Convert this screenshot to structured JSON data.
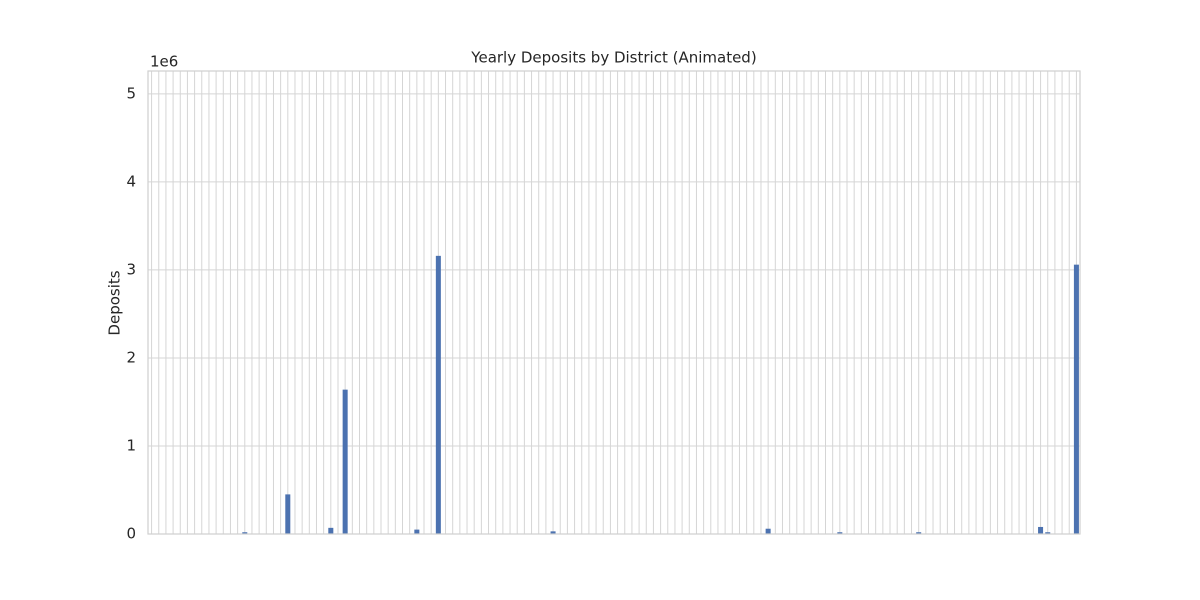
{
  "chart_data": {
    "type": "bar",
    "title": "Yearly Deposits by District (Animated)",
    "ylabel": "Deposits",
    "y_offset_label": "1e6",
    "categories": [
      null,
      null,
      null,
      null,
      null,
      null,
      null,
      null,
      null,
      null,
      null,
      null,
      null,
      null,
      null,
      null,
      null,
      null,
      null,
      null,
      null,
      null,
      null,
      null,
      null,
      null,
      null,
      null,
      null,
      null,
      null,
      null,
      null,
      null,
      null,
      null,
      null,
      null,
      null,
      null,
      null,
      null,
      null,
      null,
      null,
      null,
      null,
      null,
      null,
      null,
      null,
      null,
      null,
      null,
      null,
      null,
      null,
      null,
      null,
      null,
      null,
      null,
      null,
      null,
      null,
      null,
      null,
      null,
      null,
      null,
      null,
      null,
      null,
      null,
      null,
      null,
      null,
      null,
      null,
      null,
      null,
      null,
      null,
      null,
      null,
      null,
      null,
      null,
      null,
      null,
      null,
      null,
      null,
      null,
      null,
      null,
      null,
      null,
      null,
      null,
      null,
      null,
      null,
      null,
      null,
      null,
      null,
      null,
      null,
      null,
      null,
      null,
      null,
      null,
      null,
      null,
      null,
      null,
      null,
      null,
      null,
      null,
      null,
      null,
      null,
      null,
      null,
      null,
      null,
      null
    ],
    "values": [
      0,
      0,
      0,
      0,
      0,
      0,
      0,
      0,
      0,
      0,
      0,
      0,
      0,
      20000,
      0,
      0,
      0,
      0,
      0,
      450000,
      0,
      0,
      0,
      0,
      0,
      70000,
      0,
      1640000,
      0,
      0,
      0,
      0,
      0,
      0,
      0,
      0,
      0,
      50000,
      0,
      0,
      3160000,
      0,
      0,
      0,
      0,
      0,
      0,
      0,
      0,
      0,
      0,
      0,
      0,
      0,
      0,
      0,
      30000,
      0,
      0,
      0,
      0,
      0,
      0,
      0,
      0,
      0,
      0,
      0,
      0,
      0,
      0,
      0,
      0,
      0,
      0,
      0,
      0,
      0,
      0,
      0,
      0,
      0,
      0,
      0,
      0,
      0,
      60000,
      0,
      0,
      0,
      0,
      0,
      0,
      0,
      0,
      0,
      20000,
      0,
      0,
      0,
      0,
      0,
      0,
      0,
      0,
      0,
      0,
      20000,
      0,
      0,
      0,
      0,
      0,
      0,
      0,
      0,
      0,
      0,
      0,
      0,
      0,
      0,
      0,
      0,
      80000,
      20000,
      0,
      0,
      0,
      3060000
    ],
    "color": "#4c72b0",
    "ylim": [
      0,
      5260000
    ],
    "yticks": [
      {
        "value": 0,
        "label": "0"
      },
      {
        "value": 1000000,
        "label": "1"
      },
      {
        "value": 2000000,
        "label": "2"
      },
      {
        "value": 3000000,
        "label": "3"
      },
      {
        "value": 4000000,
        "label": "4"
      },
      {
        "value": 5000000,
        "label": "5"
      }
    ],
    "grid": true
  }
}
